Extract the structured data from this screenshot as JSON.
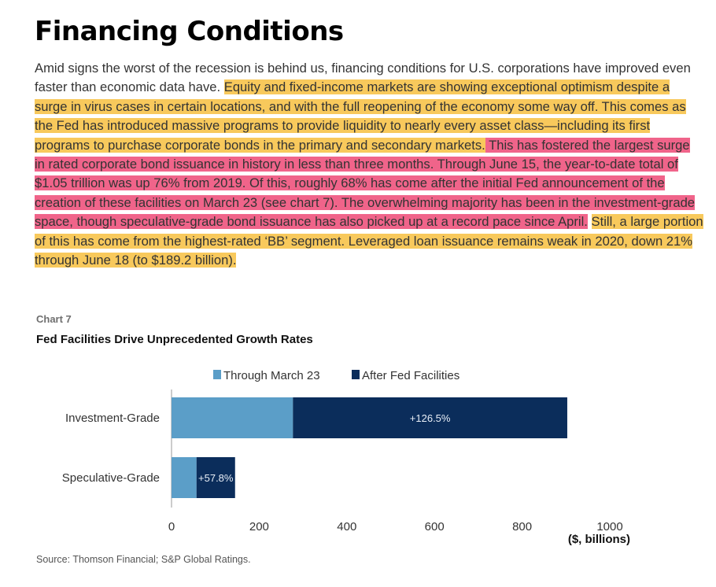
{
  "title": "Financing Conditions",
  "paragraph": {
    "plain": "Amid signs the worst of the recession is behind us, financing conditions for U.S. corporations have improved even faster than economic data have. ",
    "yellow1": "Equity and fixed-income markets are showing exceptional optimism despite a surge in virus cases in certain locations, and with the full reopening of the economy some way off. This comes as the Fed has introduced massive programs to provide liquidity to nearly every asset class—including its first programs to purchase corporate bonds in the primary and secondary markets.",
    "pink": " This has fostered the largest surge in rated corporate bond issuance in history in less than three months. Through June 15, the year-to-date total of $1.05 trillion was up 76% from 2019. Of this, roughly 68% has come after the initial Fed announcement of the creation of these facilities on March 23 (see chart 7). The overwhelming majority has been in the investment-grade space, though speculative-grade bond issuance has also picked up at a record pace since April.",
    "gap": " ",
    "yellow2": "Still, a large portion of this has come from the highest-rated ‘BB’ segment. Leveraged loan issuance remains weak in 2020, down 21% through June 18 (to $189.2 billion)."
  },
  "chart_label": "Chart 7",
  "chart_title": "Fed Facilities Drive Unprecedented Growth Rates",
  "source": "Source: Thomson Financial; S&P Global Ratings.",
  "colors": {
    "through_march_23": "#5b9ec8",
    "after_fed_facilities": "#0b2d5b",
    "highlight_yellow": "#f8c95c",
    "highlight_pink": "#f0648a"
  },
  "chart_data": {
    "type": "bar",
    "orientation": "horizontal",
    "stacked": true,
    "categories": [
      "Investment-Grade",
      "Speculative-Grade"
    ],
    "series": [
      {
        "name": "Through March 23",
        "values": [
          277,
          57
        ]
      },
      {
        "name": "After Fed Facilities",
        "values": [
          626,
          88
        ]
      }
    ],
    "data_labels": [
      "+126.5%",
      "+57.8%"
    ],
    "xlabel": "($, billions)",
    "xlim": [
      0,
      1000
    ],
    "xticks": [
      0,
      200,
      400,
      600,
      800,
      1000
    ],
    "legend_position": "top",
    "grid": false
  }
}
